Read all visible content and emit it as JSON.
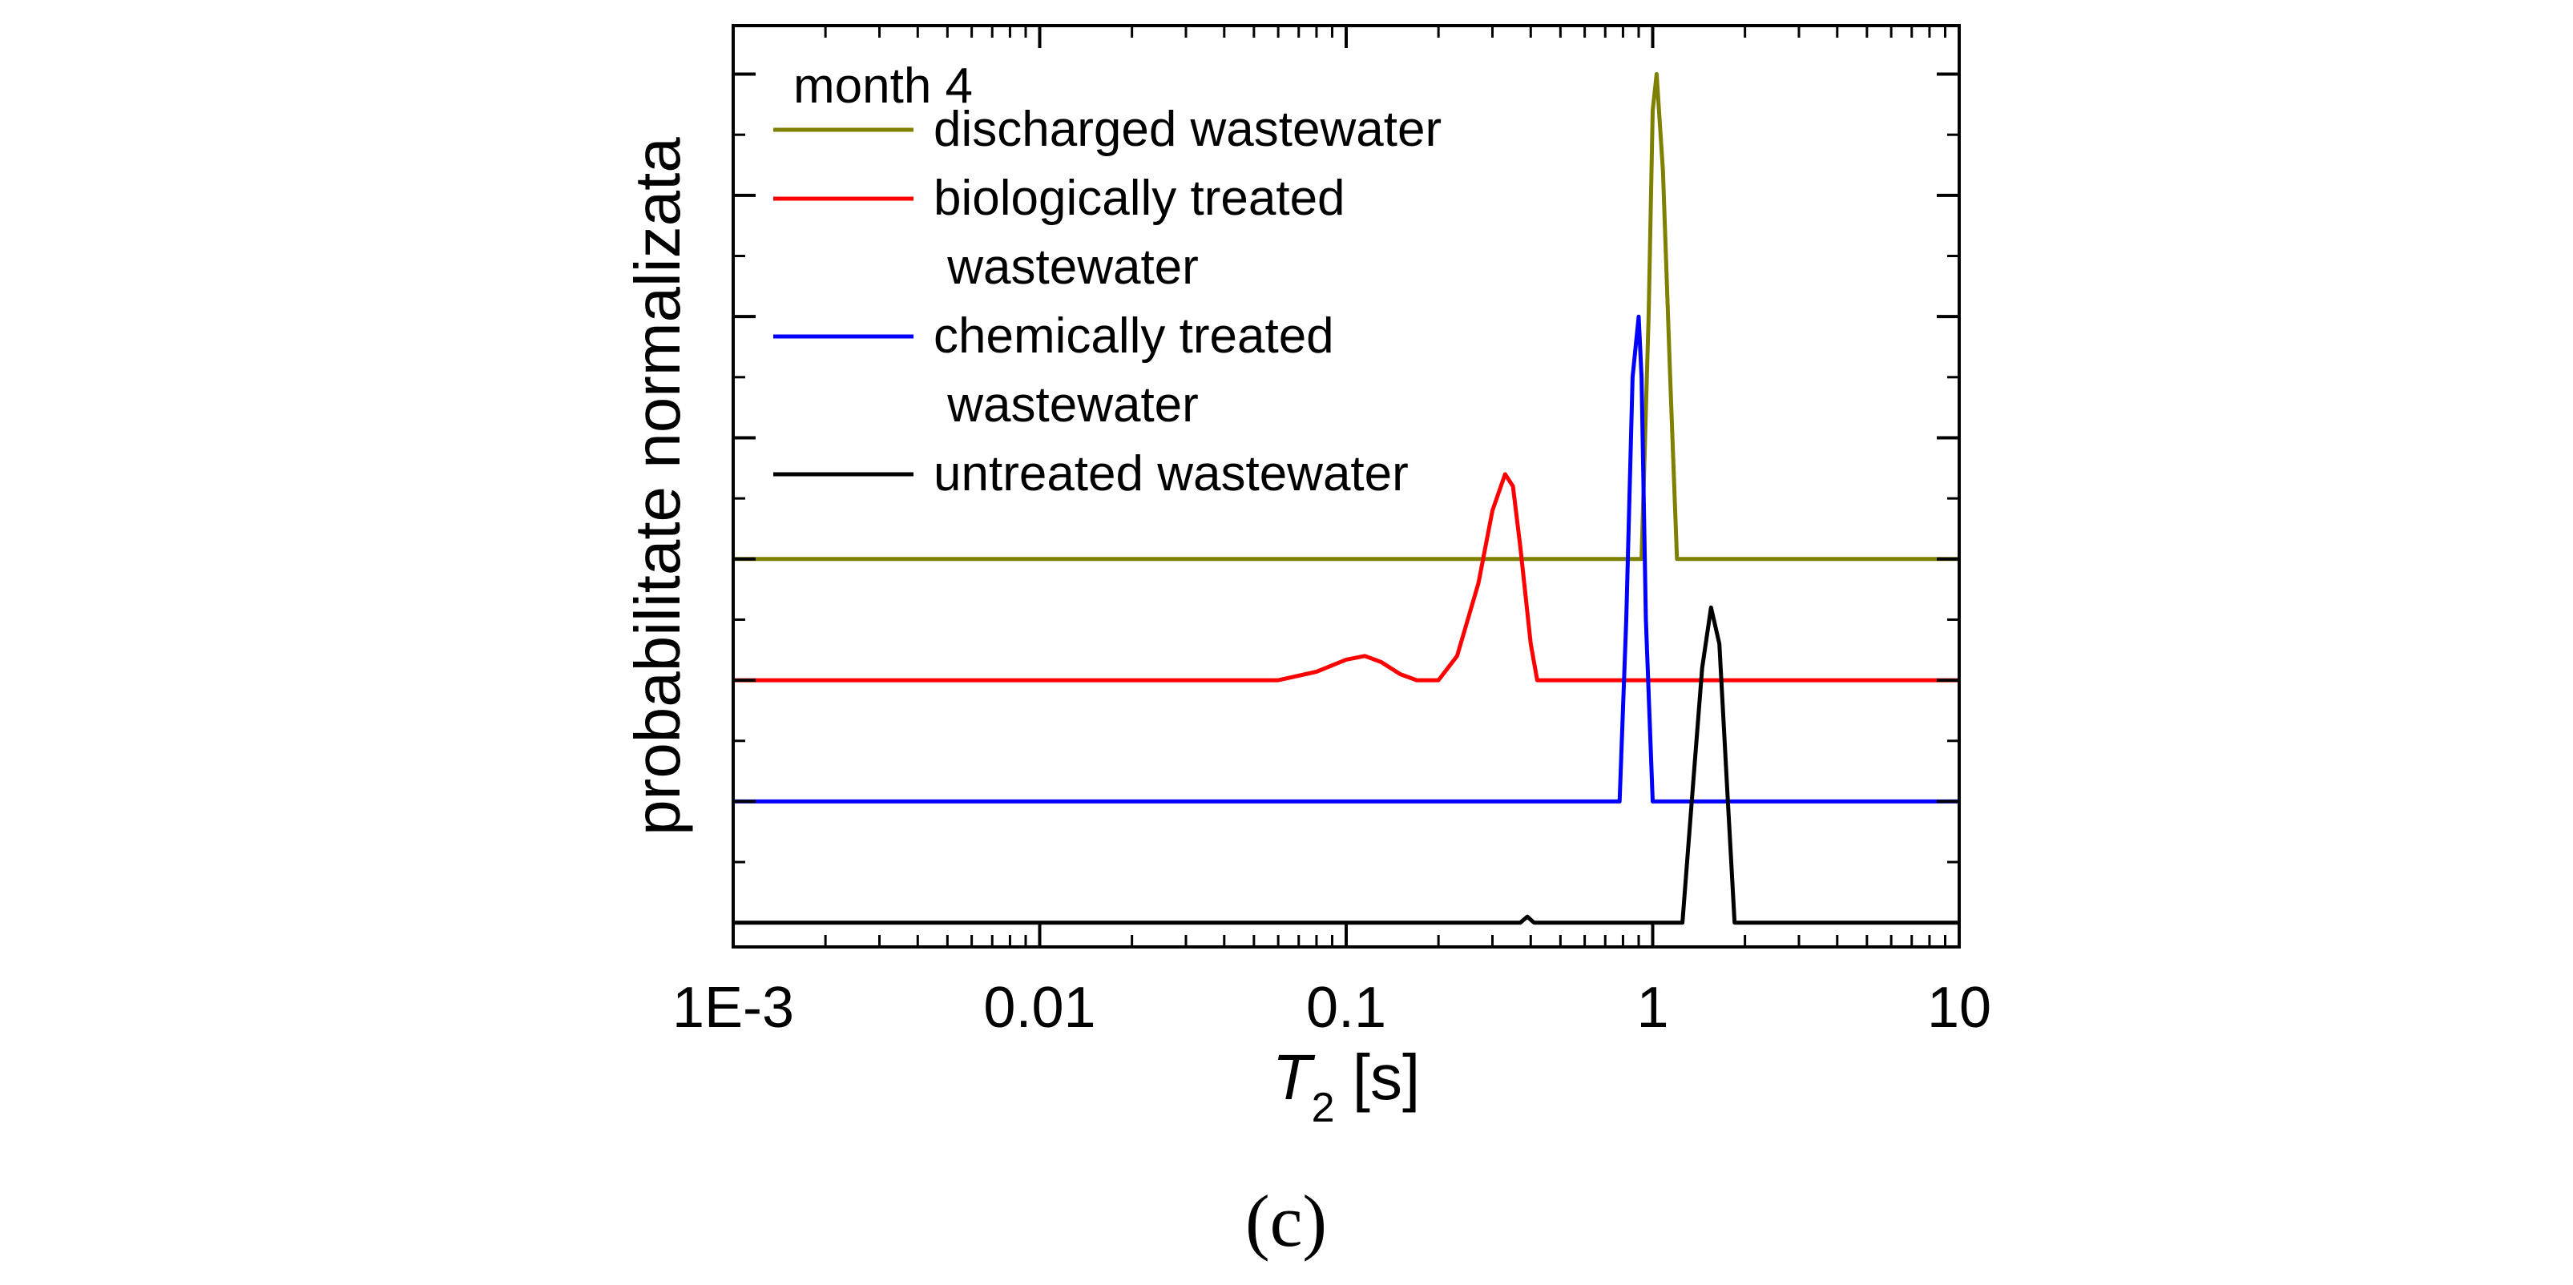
{
  "chart_data": {
    "type": "line",
    "xscale": "log",
    "xlim": [
      0.001,
      10
    ],
    "ylim": [
      -0.2,
      7.4
    ],
    "grid": false,
    "legend": {
      "title": "month 4",
      "placement": "top-left"
    },
    "xticks": [
      {
        "value": 0.001,
        "label": "1E-3"
      },
      {
        "value": 0.01,
        "label": "0.01"
      },
      {
        "value": 0.1,
        "label": "0.1"
      },
      {
        "value": 1,
        "label": "1"
      },
      {
        "value": 10,
        "label": "10"
      }
    ],
    "yticks": [
      0,
      1,
      2,
      3,
      4,
      5,
      6,
      7
    ],
    "xlabel": {
      "italic": "T",
      "subscript": "2",
      "rest": " [s]"
    },
    "ylabel": "probabilitate normalizata",
    "series": [
      {
        "name": "discharged wastewater",
        "name_lines": [
          "discharged wastewater"
        ],
        "color": "#808000",
        "x": [
          0.001,
          0.85,
          0.92,
          0.97,
          1.0,
          1.03,
          1.08,
          1.14,
          1.2,
          10
        ],
        "y": [
          3.0,
          3.0,
          3.0,
          5.0,
          6.7,
          7.0,
          6.2,
          4.5,
          3.0,
          3.0
        ]
      },
      {
        "name": "biologically treated wastewater",
        "name_lines": [
          "biologically treated",
          " wastewater"
        ],
        "color": "#ff0000",
        "x": [
          0.001,
          0.06,
          0.08,
          0.1,
          0.115,
          0.13,
          0.15,
          0.17,
          0.2,
          0.23,
          0.27,
          0.3,
          0.33,
          0.35,
          0.37,
          0.4,
          0.42,
          10
        ],
        "y": [
          2.0,
          2.0,
          2.07,
          2.17,
          2.2,
          2.15,
          2.05,
          2.0,
          2.0,
          2.2,
          2.8,
          3.4,
          3.7,
          3.6,
          3.1,
          2.3,
          2.0,
          2.0
        ]
      },
      {
        "name": "chemically treated wastewater",
        "name_lines": [
          "chemically treated",
          " wastewater"
        ],
        "color": "#0000ff",
        "x": [
          0.001,
          0.78,
          0.82,
          0.86,
          0.9,
          0.92,
          0.95,
          1.0,
          10
        ],
        "y": [
          1.0,
          1.0,
          2.5,
          4.5,
          5.0,
          4.5,
          2.5,
          1.0,
          1.0
        ]
      },
      {
        "name": "untreated wastewater",
        "name_lines": [
          "untreated wastewater"
        ],
        "color": "#000000",
        "x": [
          0.001,
          0.37,
          0.39,
          0.41,
          0.43,
          1.25,
          1.35,
          1.45,
          1.55,
          1.65,
          1.75,
          1.85,
          10
        ],
        "y": [
          0.0,
          0.0,
          0.05,
          0.0,
          0.0,
          0.0,
          1.1,
          2.1,
          2.6,
          2.3,
          1.1,
          0.0,
          0.0
        ]
      }
    ]
  },
  "panel_label": "(c)"
}
